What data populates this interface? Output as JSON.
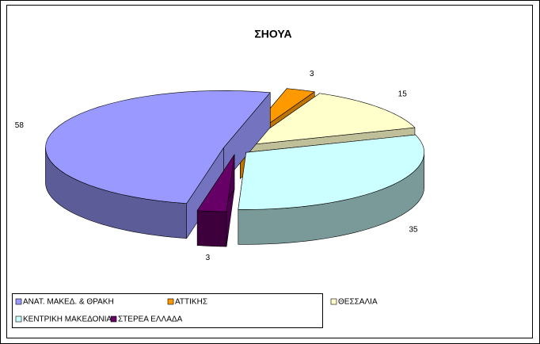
{
  "chart_data": {
    "type": "pie3d",
    "title": "ΣΗΟΥΑ",
    "categories": [
      "ΑΝΑΤ. ΜΑΚΕΔ. & ΘΡΑΚΗ",
      "ΑΤΤΙΚΗΣ",
      "ΘΕΣΣΑΛΙΑ",
      "ΚΕΝΤΡΙΚΗ ΜΑΚΕΔΟΝΙΑ",
      "ΣΤΕΡΕΑ ΕΛΛΑΔΑ"
    ],
    "values": [
      58,
      3,
      15,
      35,
      3
    ],
    "colors": [
      "#9999ff",
      "#ff9900",
      "#ffffcc",
      "#ccffff",
      "#660066"
    ],
    "legend": "bottom"
  }
}
